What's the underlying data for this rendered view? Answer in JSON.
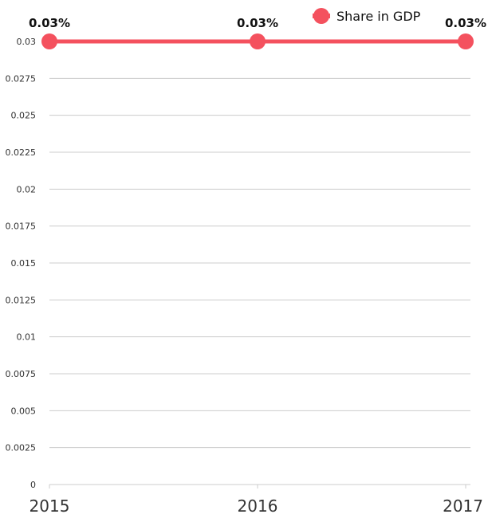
{
  "chart_data": {
    "type": "line",
    "categories": [
      "2015",
      "2016",
      "2017"
    ],
    "series": [
      {
        "name": "Share in GDP",
        "values": [
          0.03,
          0.03,
          0.03
        ],
        "color": "#f4515e",
        "data_labels": [
          "0.03%",
          "0.03%",
          "0.03%"
        ]
      }
    ],
    "ylim": [
      0,
      0.03
    ],
    "y_ticks": [
      "0",
      "0.0025",
      "0.005",
      "0.0075",
      "0.01",
      "0.0125",
      "0.015",
      "0.0175",
      "0.02",
      "0.0225",
      "0.025",
      "0.0275",
      "0.03"
    ],
    "grid": true,
    "legend_position": "top-right",
    "title": "",
    "xlabel": "",
    "ylabel": ""
  }
}
